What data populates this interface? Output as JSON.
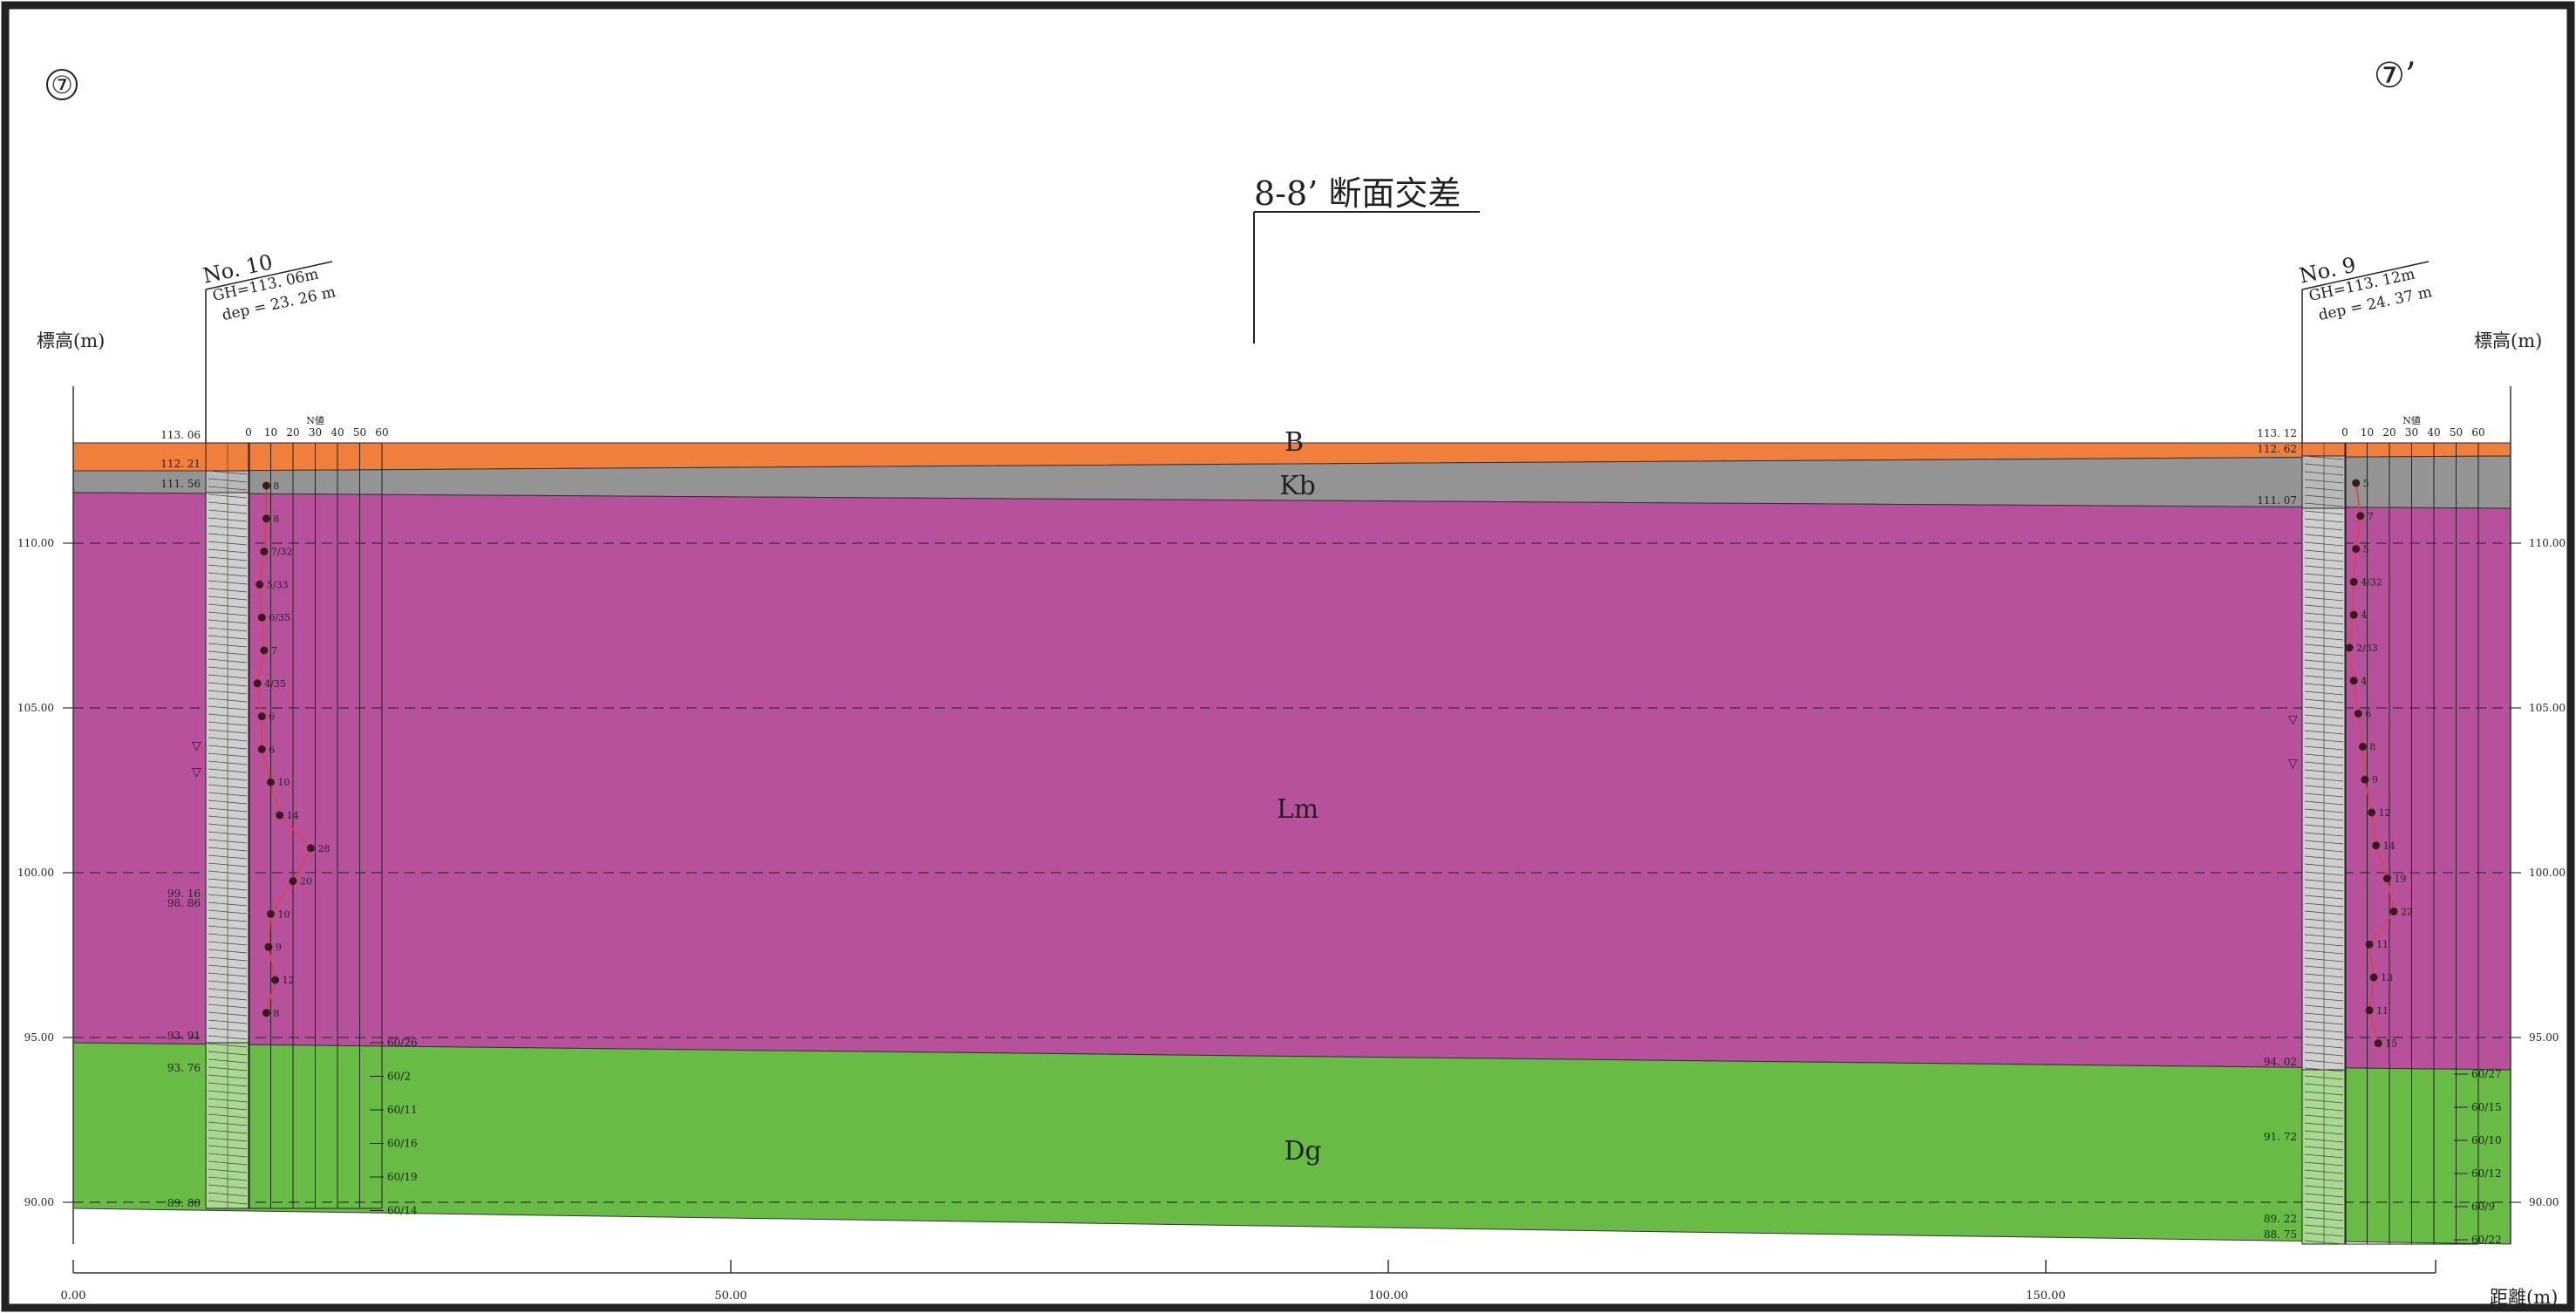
{
  "title": "8-8’ 断面交差",
  "section_marks": {
    "left": "⑦",
    "right": "⑦’"
  },
  "axes": {
    "y_label_left": "標高(m)",
    "y_label_right": "標高(m)",
    "x_label": "距離(m)",
    "y_ticks": [
      "110.00",
      "105.00",
      "100.00",
      "95.00",
      "90.00"
    ],
    "x_ticks": [
      "0.00",
      "50.00",
      "100.00",
      "150.00"
    ]
  },
  "layers": [
    {
      "code": "B",
      "color": "#f07f3c"
    },
    {
      "code": "Kb",
      "color": "#949494"
    },
    {
      "code": "Lm",
      "color": "#b8519c"
    },
    {
      "code": "Dg",
      "color": "#68bb45"
    }
  ],
  "boreholes": [
    {
      "id": "no10",
      "name": "No. 10",
      "gh": "GH=113. 06m",
      "dep": "dep = 23. 26 m",
      "n_header": "N値",
      "n_scale": [
        "0",
        "10",
        "20",
        "30",
        "40",
        "50",
        "60"
      ],
      "elevations": [
        "113. 06",
        "112. 21",
        "111. 56",
        "99. 16",
        "98. 86",
        "93. 91",
        "93. 76",
        "89. 80"
      ],
      "n_values": [
        "8",
        "8",
        "7/32",
        "5/33",
        "6/35",
        "7",
        "4/35",
        "6",
        "6",
        "10",
        "14",
        "28",
        "20",
        "10",
        "9",
        "12",
        "8"
      ],
      "refusals": [
        "60/26",
        "60/2",
        "60/11",
        "60/16",
        "60/19",
        "60/14"
      ]
    },
    {
      "id": "no9",
      "name": "No. 9",
      "gh": "GH=113. 12m",
      "dep": "dep = 24. 37 m",
      "n_header": "N値",
      "n_scale": [
        "0",
        "10",
        "20",
        "30",
        "40",
        "50",
        "60"
      ],
      "elevations": [
        "113. 12",
        "112. 62",
        "111. 07",
        "94. 02",
        "91. 72",
        "89. 22",
        "88. 75"
      ],
      "n_values": [
        "5",
        "7",
        "5",
        "4/32",
        "4",
        "2/33",
        "4",
        "6",
        "8",
        "9",
        "12",
        "14",
        "19",
        "22",
        "11",
        "13",
        "11",
        "15"
      ],
      "refusals": [
        "60/27",
        "60/15",
        "60/10",
        "60/12",
        "60/9",
        "60/22"
      ]
    }
  ]
}
